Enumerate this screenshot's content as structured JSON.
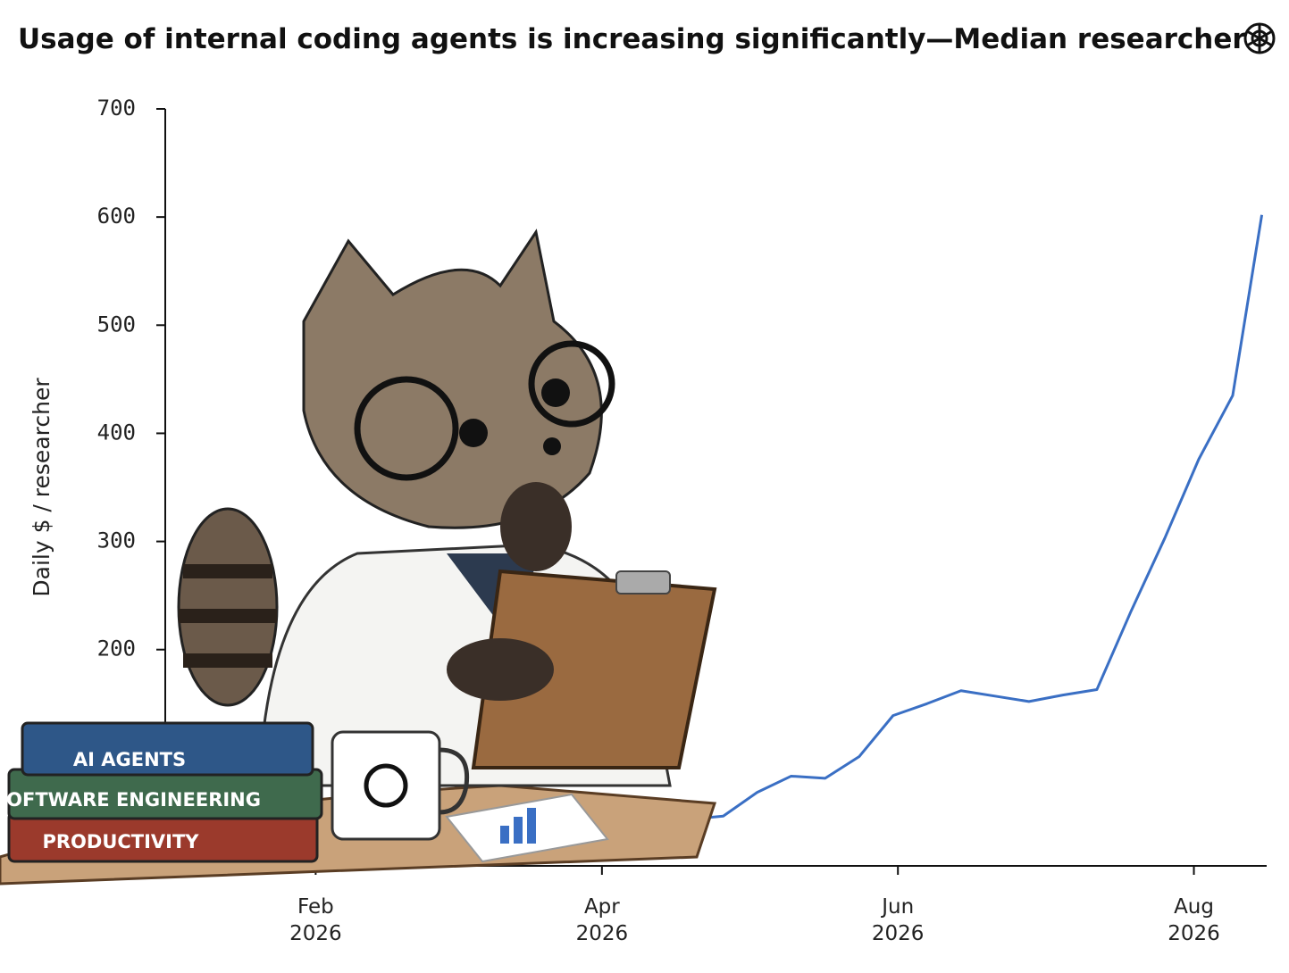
{
  "chart_data": {
    "type": "line",
    "title": "Usage of internal coding agents is increasing significantly—Median researcher",
    "y_label": "Daily $ / researcher",
    "illustration_labels": [
      "AI AGENTS",
      "SOFTWARE ENGINEERING",
      "PRODUCTIVITY"
    ],
    "x": [
      3,
      10,
      17,
      24,
      31,
      38,
      45,
      52,
      59,
      66,
      73,
      80,
      87,
      94,
      101,
      108,
      115,
      122,
      129,
      136,
      143,
      150,
      157,
      164,
      171,
      178,
      185,
      192,
      199,
      206,
      213,
      220,
      226
    ],
    "series": [
      {
        "name": "Median researcher",
        "color": "#3a6fc4",
        "values": [
          2,
          2,
          2,
          2,
          2,
          2,
          2,
          2,
          7,
          11,
          11,
          13,
          14,
          21,
          30,
          43,
          46,
          68,
          83,
          81,
          101,
          139,
          150,
          162,
          157,
          152,
          158,
          163,
          235,
          303,
          376,
          435,
          602
        ]
      }
    ],
    "xlim": [
      0,
      227
    ],
    "xticks": [
      {
        "value": 31,
        "label": "Feb 2026"
      },
      {
        "value": 90,
        "label": "Apr 2026"
      },
      {
        "value": 151,
        "label": "Jun 2026"
      },
      {
        "value": 212,
        "label": "Aug 2026"
      }
    ],
    "ylim": [
      0,
      700
    ],
    "yticks": [
      0,
      100,
      200,
      300,
      400,
      500,
      600,
      700
    ],
    "grid": false
  }
}
